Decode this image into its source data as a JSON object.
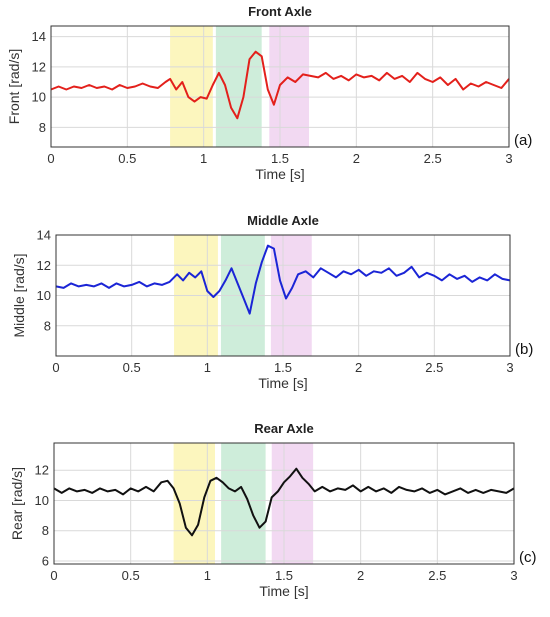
{
  "chart_data": [
    {
      "type": "line",
      "panel": "(a)",
      "title": "Front Axle",
      "xlabel": "Time [s]",
      "ylabel": "Front [rad/s]",
      "xlim": [
        0,
        3
      ],
      "ylim": [
        6.7,
        14.7
      ],
      "xticks": [
        0,
        0.5,
        1,
        1.5,
        2,
        2.5,
        3
      ],
      "xtick_labels": [
        "0",
        "0.5",
        "1",
        "1.5",
        "2",
        "2.5",
        "3"
      ],
      "yticks": [
        8,
        10,
        12,
        14
      ],
      "ytick_labels": [
        "8",
        "10",
        "12",
        "14"
      ],
      "grid": true,
      "color": "#e3201b",
      "bands": [
        {
          "from": 0.78,
          "to": 1.06,
          "color": "#fbf5b3"
        },
        {
          "from": 1.08,
          "to": 1.38,
          "color": "#c5ead3"
        },
        {
          "from": 1.43,
          "to": 1.69,
          "color": "#f0d2f0"
        }
      ],
      "series": [
        {
          "x": [
            0,
            0.05,
            0.1,
            0.15,
            0.2,
            0.25,
            0.3,
            0.35,
            0.4,
            0.45,
            0.5,
            0.55,
            0.6,
            0.65,
            0.7,
            0.75,
            0.78,
            0.82,
            0.86,
            0.9,
            0.94,
            0.98,
            1.02,
            1.06,
            1.1,
            1.14,
            1.18,
            1.22,
            1.26,
            1.3,
            1.34,
            1.38,
            1.42,
            1.46,
            1.5,
            1.55,
            1.6,
            1.65,
            1.7,
            1.75,
            1.8,
            1.85,
            1.9,
            1.95,
            2.0,
            2.05,
            2.1,
            2.15,
            2.2,
            2.25,
            2.3,
            2.35,
            2.4,
            2.45,
            2.5,
            2.55,
            2.6,
            2.65,
            2.7,
            2.75,
            2.8,
            2.85,
            2.9,
            2.95,
            3.0
          ],
          "y": [
            10.5,
            10.7,
            10.5,
            10.7,
            10.6,
            10.8,
            10.6,
            10.7,
            10.5,
            10.8,
            10.6,
            10.7,
            10.9,
            10.7,
            10.6,
            11.0,
            11.2,
            10.5,
            11.0,
            10.0,
            9.7,
            10.0,
            9.9,
            10.8,
            11.6,
            10.8,
            9.3,
            8.6,
            10.0,
            12.5,
            13.0,
            12.7,
            10.5,
            9.5,
            10.8,
            11.3,
            11.0,
            11.5,
            11.4,
            11.3,
            11.6,
            11.2,
            11.4,
            11.1,
            11.5,
            11.3,
            11.4,
            11.1,
            11.6,
            11.2,
            11.4,
            11.0,
            11.6,
            11.2,
            11.0,
            11.3,
            10.8,
            11.2,
            10.5,
            10.9,
            10.7,
            11.0,
            10.8,
            10.6,
            11.2
          ]
        }
      ]
    },
    {
      "type": "line",
      "panel": "(b)",
      "title": "Middle Axle",
      "xlabel": "Time [s]",
      "ylabel": "Middle [rad/s]",
      "xlim": [
        0,
        3
      ],
      "ylim": [
        6.0,
        14.0
      ],
      "xticks": [
        0,
        0.5,
        1,
        1.5,
        2,
        2.5,
        3
      ],
      "xtick_labels": [
        "0",
        "0.5",
        "1",
        "1.5",
        "2",
        "2.5",
        "3"
      ],
      "yticks": [
        8,
        10,
        12,
        14
      ],
      "ytick_labels": [
        "8",
        "10",
        "12",
        "14"
      ],
      "grid": true,
      "color": "#1b25d6",
      "bands": [
        {
          "from": 0.78,
          "to": 1.07,
          "color": "#fbf5b3"
        },
        {
          "from": 1.09,
          "to": 1.38,
          "color": "#c5ead3"
        },
        {
          "from": 1.42,
          "to": 1.69,
          "color": "#f0d2f0"
        }
      ],
      "series": [
        {
          "x": [
            0,
            0.05,
            0.1,
            0.15,
            0.2,
            0.25,
            0.3,
            0.35,
            0.4,
            0.45,
            0.5,
            0.55,
            0.6,
            0.65,
            0.7,
            0.75,
            0.8,
            0.84,
            0.88,
            0.92,
            0.96,
            1.0,
            1.04,
            1.08,
            1.12,
            1.16,
            1.2,
            1.24,
            1.28,
            1.32,
            1.36,
            1.4,
            1.44,
            1.48,
            1.52,
            1.56,
            1.6,
            1.65,
            1.7,
            1.75,
            1.8,
            1.85,
            1.9,
            1.95,
            2.0,
            2.05,
            2.1,
            2.15,
            2.2,
            2.25,
            2.3,
            2.35,
            2.4,
            2.45,
            2.5,
            2.55,
            2.6,
            2.65,
            2.7,
            2.75,
            2.8,
            2.85,
            2.9,
            2.95,
            3.0
          ],
          "y": [
            10.6,
            10.5,
            10.8,
            10.6,
            10.7,
            10.6,
            10.8,
            10.5,
            10.8,
            10.6,
            10.7,
            10.9,
            10.6,
            10.8,
            10.7,
            10.9,
            11.4,
            11.0,
            11.5,
            11.2,
            11.6,
            10.3,
            9.9,
            10.3,
            11.0,
            11.8,
            10.8,
            9.8,
            8.8,
            10.8,
            12.2,
            13.3,
            13.1,
            11.0,
            9.8,
            10.5,
            11.4,
            11.6,
            11.2,
            11.8,
            11.5,
            11.2,
            11.6,
            11.4,
            11.7,
            11.3,
            11.6,
            11.5,
            11.8,
            11.3,
            11.5,
            11.9,
            11.2,
            11.5,
            11.3,
            11.0,
            11.4,
            11.1,
            11.3,
            10.9,
            11.2,
            11.0,
            11.4,
            11.1,
            11.0
          ]
        }
      ]
    },
    {
      "type": "line",
      "panel": "(c)",
      "title": "Rear Axle",
      "xlabel": "Time [s]",
      "ylabel": "Rear [rad/s]",
      "xlim": [
        0,
        3
      ],
      "ylim": [
        5.8,
        13.8
      ],
      "xticks": [
        0,
        0.5,
        1,
        1.5,
        2,
        2.5,
        3
      ],
      "xtick_labels": [
        "0",
        "0.5",
        "1",
        "1.5",
        "2",
        "2.5",
        "3"
      ],
      "yticks": [
        6,
        8,
        10,
        12
      ],
      "ytick_labels": [
        "6",
        "8",
        "10",
        "12"
      ],
      "grid": true,
      "color": "#111111",
      "bands": [
        {
          "from": 0.78,
          "to": 1.05,
          "color": "#fbf5b3"
        },
        {
          "from": 1.09,
          "to": 1.38,
          "color": "#c5ead3"
        },
        {
          "from": 1.42,
          "to": 1.69,
          "color": "#f0d2f0"
        }
      ],
      "series": [
        {
          "x": [
            0,
            0.05,
            0.1,
            0.15,
            0.2,
            0.25,
            0.3,
            0.35,
            0.4,
            0.45,
            0.5,
            0.55,
            0.6,
            0.65,
            0.7,
            0.74,
            0.78,
            0.82,
            0.86,
            0.9,
            0.94,
            0.98,
            1.02,
            1.06,
            1.1,
            1.14,
            1.18,
            1.22,
            1.26,
            1.3,
            1.34,
            1.38,
            1.42,
            1.46,
            1.5,
            1.54,
            1.58,
            1.62,
            1.66,
            1.7,
            1.75,
            1.8,
            1.85,
            1.9,
            1.95,
            2.0,
            2.05,
            2.1,
            2.15,
            2.2,
            2.25,
            2.3,
            2.35,
            2.4,
            2.45,
            2.5,
            2.55,
            2.6,
            2.65,
            2.7,
            2.75,
            2.8,
            2.85,
            2.9,
            2.95,
            3.0
          ],
          "y": [
            10.8,
            10.5,
            10.8,
            10.6,
            10.7,
            10.5,
            10.8,
            10.6,
            10.7,
            10.4,
            10.8,
            10.6,
            10.9,
            10.6,
            11.2,
            11.3,
            10.8,
            9.8,
            8.2,
            7.7,
            8.4,
            10.2,
            11.3,
            11.5,
            11.2,
            10.8,
            10.6,
            10.9,
            10.1,
            9.0,
            8.2,
            8.6,
            10.2,
            10.6,
            11.2,
            11.6,
            12.1,
            11.5,
            11.1,
            10.6,
            10.9,
            10.6,
            10.8,
            10.7,
            11.0,
            10.6,
            10.9,
            10.6,
            10.8,
            10.5,
            10.9,
            10.7,
            10.6,
            10.8,
            10.5,
            10.7,
            10.4,
            10.6,
            10.8,
            10.5,
            10.7,
            10.5,
            10.7,
            10.6,
            10.5,
            10.8
          ]
        }
      ]
    }
  ]
}
